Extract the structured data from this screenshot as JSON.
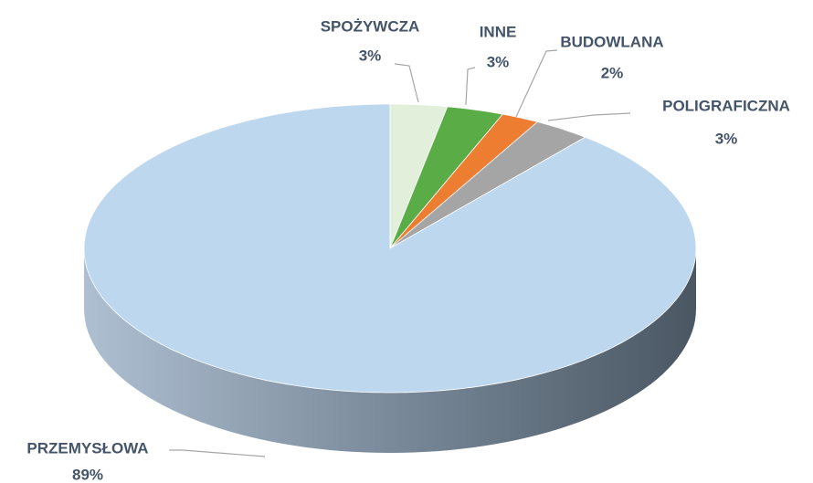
{
  "chart_data": {
    "type": "pie3d",
    "categories": [
      "SPOŻYWCZA",
      "INNE",
      "BUDOWLANA",
      "POLIGRAFICZNA",
      "PRZEMYSŁOWA"
    ],
    "values": [
      3,
      3,
      2,
      3,
      89
    ],
    "value_labels": [
      "3%",
      "3%",
      "2%",
      "3%",
      "89%"
    ],
    "colors": [
      "#e2efda",
      "#5aad46",
      "#ed7d31",
      "#a5a5a5",
      "#bdd7ee"
    ]
  }
}
